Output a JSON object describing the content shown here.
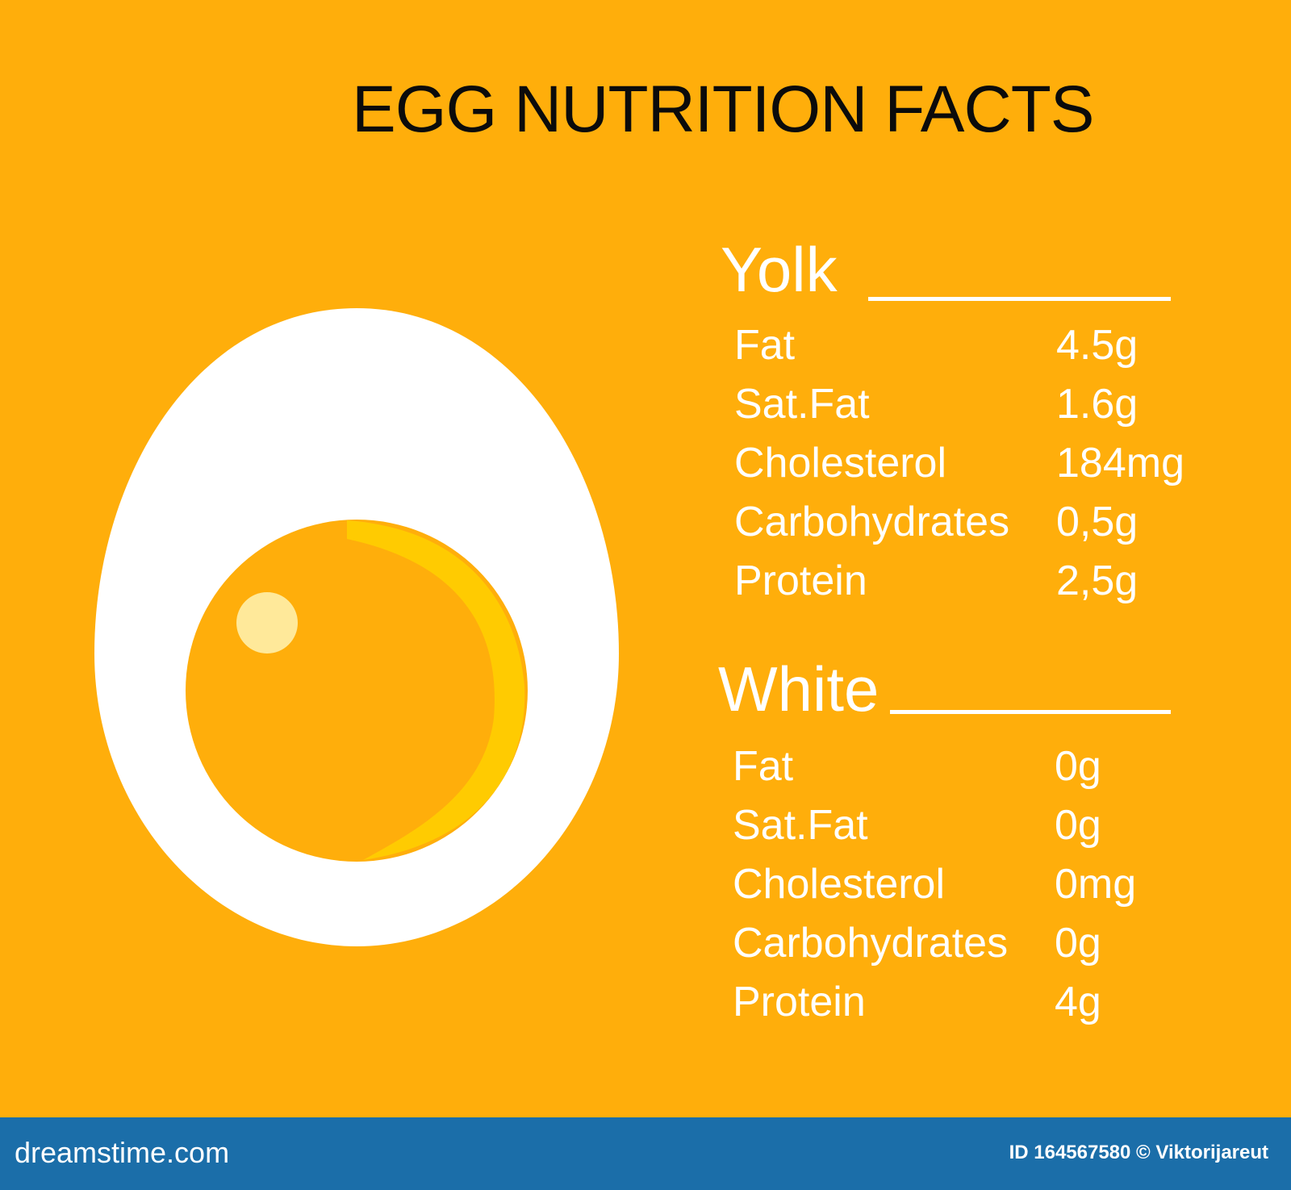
{
  "title": "EGG NUTRITION FACTS",
  "colors": {
    "background": "#FFAE0B",
    "egg_white": "#FFFFFF",
    "yolk": "#FFAE0B",
    "yolk_rim": "#FFD000",
    "text": "#FFFFFF",
    "title_text": "#0B0B0B",
    "footer": "#1B6EA9"
  },
  "illustration": {
    "subject": "halved-boiled-egg",
    "parts": [
      "egg-white",
      "yolk",
      "yolk-highlight",
      "yolk-rim"
    ]
  },
  "yolk": {
    "heading": "Yolk",
    "rows": [
      {
        "label": "Fat",
        "value": "4.5g"
      },
      {
        "label": "Sat.Fat",
        "value": "1.6g"
      },
      {
        "label": "Cholesterol",
        "value": "184mg"
      },
      {
        "label": "Carbohydrates",
        "value": "0,5g"
      },
      {
        "label": "Protein",
        "value": "2,5g"
      }
    ]
  },
  "white": {
    "heading": "White",
    "rows": [
      {
        "label": "Fat",
        "value": "0g"
      },
      {
        "label": "Sat.Fat",
        "value": "0g"
      },
      {
        "label": "Cholesterol",
        "value": "0mg"
      },
      {
        "label": "Carbohydrates",
        "value": "0g"
      },
      {
        "label": "Protein",
        "value": "4g"
      }
    ]
  },
  "watermark": {
    "brand": "dreamstime.com",
    "image_id": "ID 164567580 © Viktorijareut"
  }
}
